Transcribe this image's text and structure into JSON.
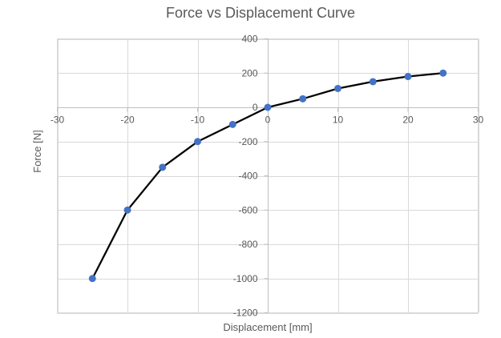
{
  "chart_data": {
    "type": "scatter",
    "title": "Force vs Displacement Curve",
    "xlabel": "Displacement [mm]",
    "ylabel": "Force [N]",
    "xlim": [
      -30,
      30
    ],
    "ylim": [
      -1200,
      400
    ],
    "x_ticks": [
      -30,
      -20,
      -10,
      0,
      10,
      20,
      30
    ],
    "y_ticks": [
      400,
      200,
      0,
      -200,
      -400,
      -600,
      -800,
      -1000,
      -1200
    ],
    "grid": true,
    "legend": "none",
    "series": [
      {
        "x": [
          -25,
          -20,
          -15,
          -10,
          -5,
          0,
          5,
          10,
          15,
          20,
          25
        ],
        "y": [
          -1000,
          -600,
          -350,
          -200,
          -100,
          0,
          50,
          110,
          150,
          180,
          200
        ],
        "line_color": "#000000",
        "marker_color": "#4472c4"
      }
    ]
  }
}
